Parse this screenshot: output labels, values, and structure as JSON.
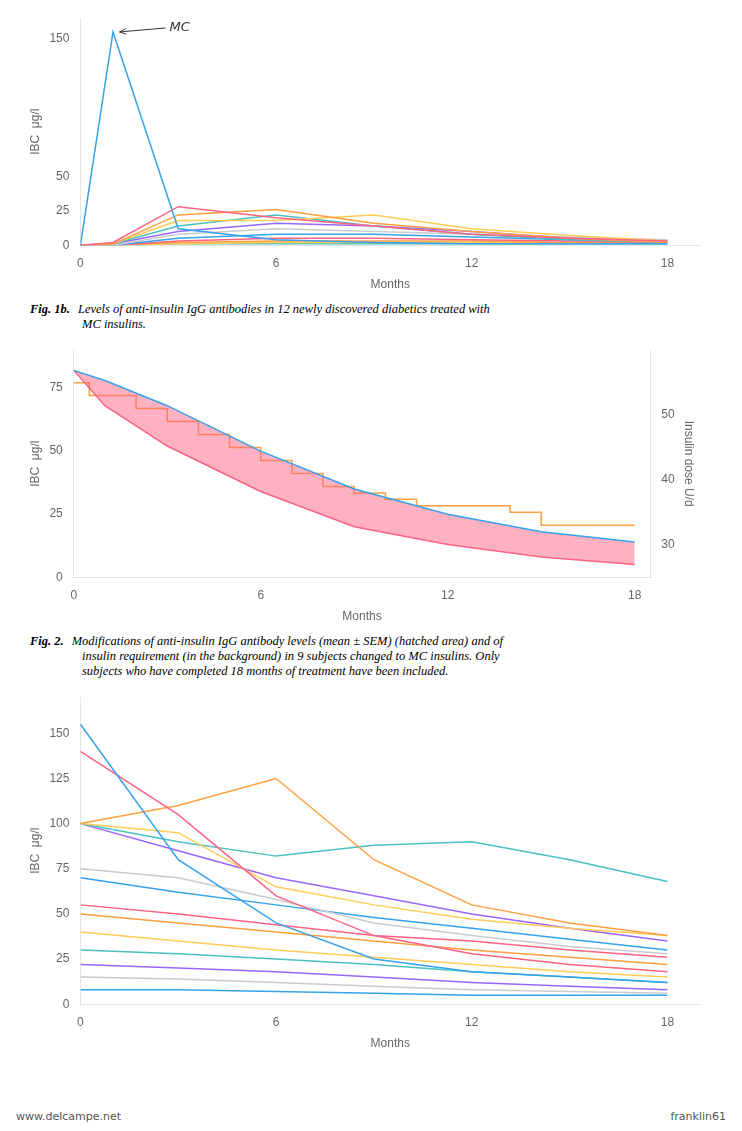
{
  "chart_data": [
    {
      "type": "line",
      "xlabel": "Months",
      "ylabel": "IBC  μg/l",
      "xlim": [
        0,
        19
      ],
      "xticks": [
        0,
        6,
        12,
        18
      ],
      "ylim": [
        0,
        165
      ],
      "yticks": [
        0,
        25,
        50,
        150
      ],
      "grid": false,
      "series": [
        {
          "x": [
            0,
            1,
            3,
            6,
            9,
            12,
            15,
            18
          ],
          "values": [
            0,
            155,
            12,
            4,
            2,
            1,
            1,
            1
          ]
        },
        {
          "x": [
            0,
            1,
            3,
            6,
            9,
            12,
            15,
            18
          ],
          "values": [
            0,
            2,
            28,
            20,
            14,
            8,
            5,
            3
          ]
        },
        {
          "x": [
            0,
            1,
            3,
            6,
            9,
            12,
            15,
            18
          ],
          "values": [
            0,
            1,
            22,
            26,
            16,
            10,
            5,
            2
          ]
        },
        {
          "x": [
            0,
            1,
            3,
            6,
            9,
            12,
            15,
            18
          ],
          "values": [
            0,
            1,
            18,
            18,
            22,
            12,
            7,
            3
          ]
        },
        {
          "x": [
            0,
            1,
            3,
            6,
            9,
            12,
            15,
            18
          ],
          "values": [
            0,
            1,
            14,
            22,
            14,
            8,
            4,
            2
          ]
        },
        {
          "x": [
            0,
            1,
            3,
            6,
            9,
            12,
            15,
            18
          ],
          "values": [
            0,
            1,
            10,
            16,
            14,
            10,
            5,
            3
          ]
        },
        {
          "x": [
            0,
            1,
            3,
            6,
            9,
            12,
            15,
            18
          ],
          "values": [
            0,
            0,
            8,
            12,
            10,
            8,
            6,
            4
          ]
        },
        {
          "x": [
            0,
            1,
            3,
            6,
            9,
            12,
            15,
            18
          ],
          "values": [
            0,
            0,
            5,
            8,
            8,
            6,
            4,
            3
          ]
        },
        {
          "x": [
            0,
            1,
            3,
            6,
            9,
            12,
            15,
            18
          ],
          "values": [
            0,
            0,
            3,
            5,
            5,
            4,
            3,
            2
          ]
        },
        {
          "x": [
            0,
            1,
            3,
            6,
            9,
            12,
            15,
            18
          ],
          "values": [
            0,
            0,
            2,
            3,
            3,
            3,
            2,
            2
          ]
        },
        {
          "x": [
            0,
            1,
            3,
            6,
            9,
            12,
            15,
            18
          ],
          "values": [
            0,
            0,
            1,
            2,
            2,
            2,
            2,
            2
          ]
        },
        {
          "x": [
            0,
            1,
            3,
            6,
            9,
            12,
            15,
            18
          ],
          "values": [
            0,
            0,
            1,
            1,
            1,
            1,
            1,
            1
          ]
        }
      ],
      "annotations": [
        {
          "text": "MC",
          "x": 1.2,
          "y": 155
        },
        {
          "text": "Fig. 1b."
        },
        {
          "text": "Levels of anti-insulin IgG antibodies in 12 newly discovered diabetics treated with"
        },
        {
          "text": "MC insulins."
        }
      ]
    },
    {
      "type": "line",
      "xlabel": "Months",
      "ylabel": "IBC  μg/l",
      "y2label": "Insulin dose U/d",
      "xlim": [
        0,
        18.5
      ],
      "xticks": [
        0,
        6,
        12,
        18
      ],
      "ylim": [
        0,
        90
      ],
      "yticks": [
        0,
        25,
        50,
        75
      ],
      "y2lim": [
        25,
        60
      ],
      "y2ticks": [
        30,
        40,
        50
      ],
      "grid": false,
      "series": [
        {
          "type": "line",
          "x": [
            0,
            1,
            3,
            6,
            9,
            12,
            15,
            18
          ],
          "values": [
            82,
            78,
            68,
            50,
            35,
            25,
            18,
            14
          ]
        },
        {
          "type": "area",
          "x": [
            0,
            1,
            3,
            6,
            9,
            12,
            15,
            18
          ],
          "values": [
            82,
            68,
            52,
            34,
            20,
            13,
            8,
            5
          ]
        },
        {
          "type": "line",
          "axis": "y2",
          "x": [
            0,
            0.5,
            0.5,
            2,
            2,
            3,
            3,
            4,
            4,
            5,
            5,
            6,
            6,
            7,
            7,
            8,
            8,
            9,
            9,
            10,
            10,
            11,
            11,
            12,
            12,
            13,
            13,
            14,
            14,
            15,
            15,
            16,
            16,
            17,
            17,
            18
          ],
          "values": [
            55,
            55,
            53,
            53,
            51,
            51,
            49,
            49,
            47,
            47,
            45,
            45,
            43,
            43,
            41,
            41,
            39,
            39,
            38,
            38,
            37,
            37,
            36,
            36,
            36,
            36,
            36,
            36,
            35,
            35,
            33,
            33,
            33,
            33,
            33,
            33
          ]
        }
      ],
      "annotations": [
        {
          "text": "Fig. 2."
        },
        {
          "text": "Modifications of anti-insulin IgG antibody levels (mean ± SEM) (hatched area) and of"
        },
        {
          "text": "insulin requirement (in the background) in 9 subjects changed to MC insulins. Only"
        },
        {
          "text": "subjects who have completed 18 months of treatment have been included."
        }
      ]
    },
    {
      "type": "line",
      "xlabel": "Months",
      "ylabel": "IBC  μg/l",
      "xlim": [
        0,
        19
      ],
      "xticks": [
        0,
        6,
        12,
        18
      ],
      "ylim": [
        0,
        170
      ],
      "yticks": [
        0,
        25,
        50,
        75,
        100,
        125,
        150
      ],
      "grid": false,
      "series": [
        {
          "x": [
            0,
            3,
            6,
            9,
            12,
            15,
            18
          ],
          "values": [
            155,
            80,
            45,
            25,
            18,
            15,
            12
          ]
        },
        {
          "x": [
            0,
            3,
            6,
            9,
            12,
            15,
            18
          ],
          "values": [
            140,
            105,
            60,
            38,
            28,
            22,
            18
          ]
        },
        {
          "x": [
            0,
            3,
            6,
            9,
            12,
            15,
            18
          ],
          "values": [
            100,
            110,
            125,
            80,
            55,
            45,
            38
          ]
        },
        {
          "x": [
            0,
            3,
            6,
            9,
            12,
            15,
            18
          ],
          "values": [
            100,
            95,
            65,
            55,
            47,
            42,
            38
          ]
        },
        {
          "x": [
            0,
            3,
            6,
            9,
            12,
            15,
            18
          ],
          "values": [
            100,
            90,
            82,
            88,
            90,
            80,
            68
          ]
        },
        {
          "x": [
            0,
            3,
            6,
            9,
            12,
            15,
            18
          ],
          "values": [
            100,
            85,
            70,
            60,
            50,
            42,
            35
          ]
        },
        {
          "x": [
            0,
            3,
            6,
            9,
            12,
            15,
            18
          ],
          "values": [
            75,
            70,
            58,
            45,
            38,
            32,
            28
          ]
        },
        {
          "x": [
            0,
            3,
            6,
            9,
            12,
            15,
            18
          ],
          "values": [
            70,
            62,
            55,
            48,
            42,
            36,
            30
          ]
        },
        {
          "x": [
            0,
            3,
            6,
            9,
            12,
            15,
            18
          ],
          "values": [
            55,
            50,
            44,
            38,
            35,
            30,
            26
          ]
        },
        {
          "x": [
            0,
            3,
            6,
            9,
            12,
            15,
            18
          ],
          "values": [
            50,
            45,
            40,
            35,
            30,
            26,
            22
          ]
        },
        {
          "x": [
            0,
            3,
            6,
            9,
            12,
            15,
            18
          ],
          "values": [
            40,
            35,
            30,
            26,
            22,
            18,
            15
          ]
        },
        {
          "x": [
            0,
            3,
            6,
            9,
            12,
            15,
            18
          ],
          "values": [
            30,
            28,
            25,
            22,
            18,
            15,
            12
          ]
        },
        {
          "x": [
            0,
            3,
            6,
            9,
            12,
            15,
            18
          ],
          "values": [
            22,
            20,
            18,
            15,
            12,
            10,
            8
          ]
        },
        {
          "x": [
            0,
            3,
            6,
            9,
            12,
            15,
            18
          ],
          "values": [
            15,
            14,
            12,
            10,
            8,
            7,
            6
          ]
        },
        {
          "x": [
            0,
            3,
            6,
            9,
            12,
            15,
            18
          ],
          "values": [
            8,
            8,
            7,
            6,
            5,
            5,
            5
          ]
        }
      ]
    }
  ],
  "annotations": [
    {
      "text": "www.delcampe.net"
    },
    {
      "text": "franklin61"
    }
  ]
}
